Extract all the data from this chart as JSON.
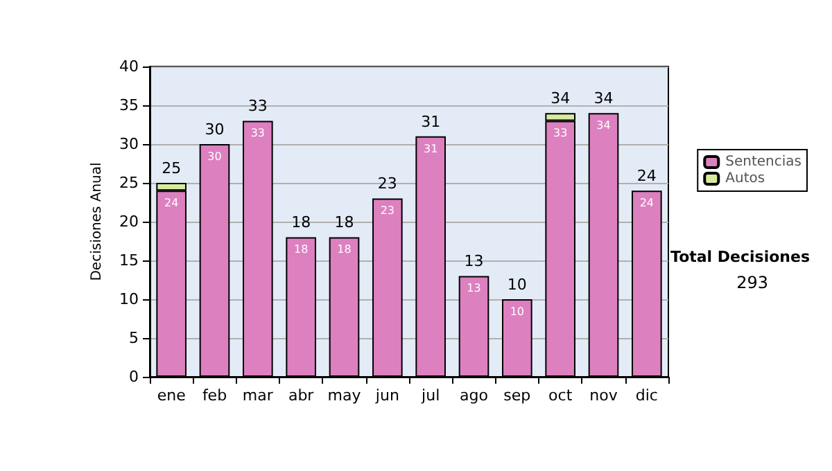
{
  "chart_data": {
    "type": "bar",
    "stacked": true,
    "ylabel": "Decisiones Anual",
    "categories": [
      "ene",
      "feb",
      "mar",
      "abr",
      "may",
      "jun",
      "jul",
      "ago",
      "sep",
      "oct",
      "nov",
      "dic"
    ],
    "series": [
      {
        "name": "Sentencias",
        "color": "#dd80c0",
        "values": [
          24,
          30,
          33,
          18,
          18,
          23,
          31,
          13,
          10,
          33,
          34,
          24
        ],
        "value_labels": [
          "24",
          "30",
          "33",
          "18",
          "18",
          "23",
          "31",
          "13",
          "10",
          "33",
          "34",
          "24"
        ]
      },
      {
        "name": "Autos",
        "color": "#d8eca0",
        "values": [
          1,
          0,
          0,
          0,
          0,
          0,
          0,
          0,
          0,
          1,
          0,
          0
        ]
      }
    ],
    "totals": [
      "25",
      "30",
      "33",
      "18",
      "18",
      "23",
      "31",
      "13",
      "10",
      "34",
      "34",
      "24"
    ],
    "ylim": [
      0,
      40
    ],
    "yticks": [
      0,
      5,
      10,
      15,
      20,
      25,
      30,
      35,
      40
    ],
    "grid": "y",
    "legend": "right",
    "annotations": [
      "Total Decisiones",
      "293"
    ]
  }
}
